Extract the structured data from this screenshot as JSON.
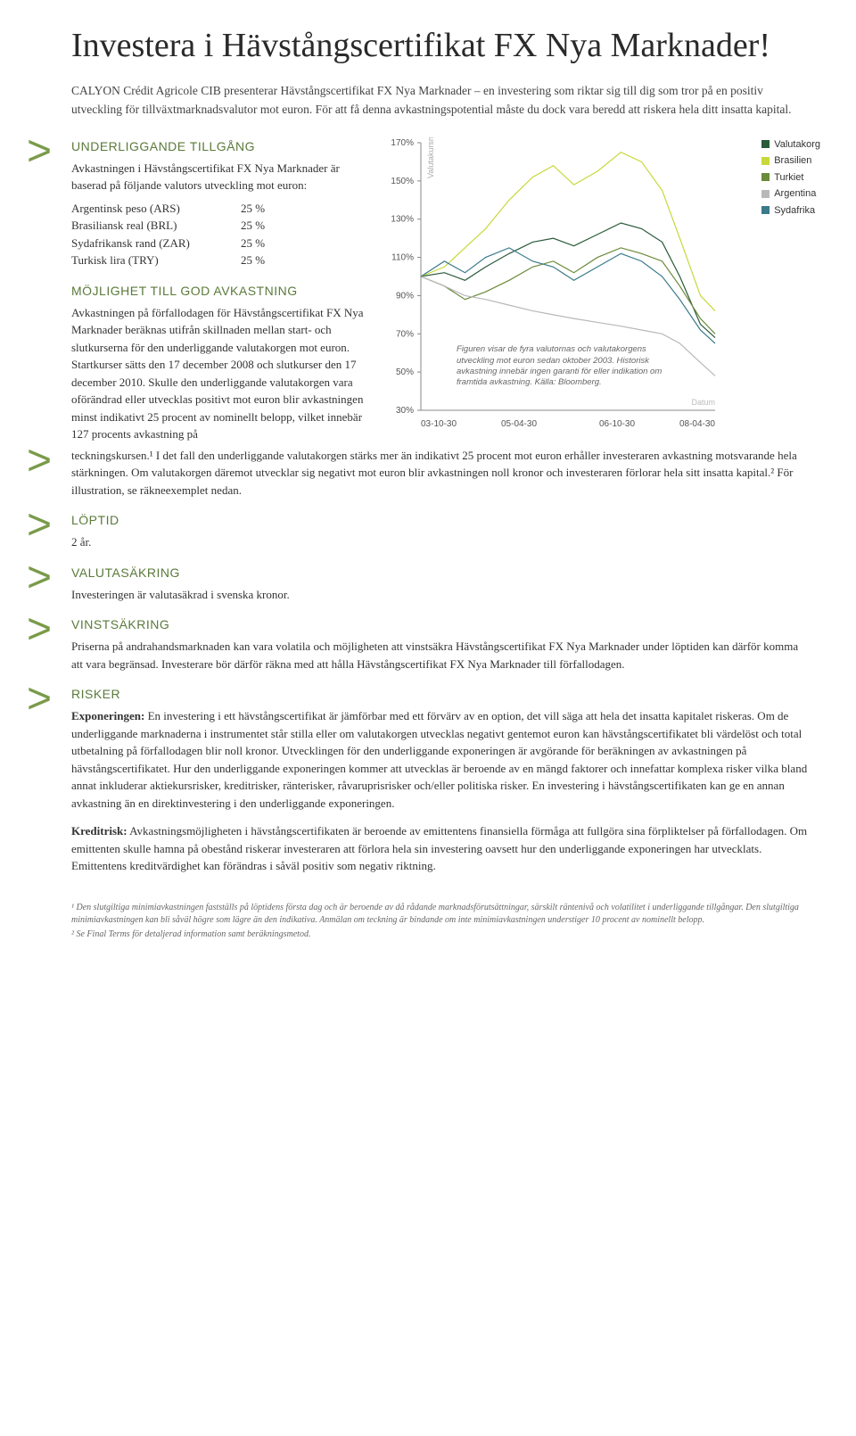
{
  "title": "Investera i Hävstångscertifikat FX Nya Marknader!",
  "intro": "CALYON Crédit Agricole CIB presenterar Hävstångscertifikat FX Nya Marknader – en investering som riktar sig till dig som tror på en positiv utveckling för tillväxtmarknadsvalutor mot euron. För att få denna avkastningspotential måste du dock vara beredd att riskera hela ditt insatta kapital.",
  "sections": {
    "underlying": {
      "title": "UNDERLIGGANDE TILLGÅNG",
      "text": "Avkastningen i Hävstångscertifikat FX Nya Marknader är baserad på följande valutors utveckling mot euron:",
      "currencies": [
        {
          "name": "Argentinsk peso (ARS)",
          "pct": "25 %"
        },
        {
          "name": "Brasiliansk real (BRL)",
          "pct": "25 %"
        },
        {
          "name": "Sydafrikansk rand (ZAR)",
          "pct": "25 %"
        },
        {
          "name": "Turkisk lira (TRY)",
          "pct": "25 %"
        }
      ]
    },
    "return": {
      "title": "MÖJLIGHET TILL GOD AVKASTNING",
      "text1": "Avkastningen på förfallodagen för Hävstångscertifikat FX Nya Marknader beräknas utifrån skillnaden mellan start- och slutkurserna för den underliggande valutakorgen mot euron. Startkurser sätts den 17 december 2008 och slutkurser den 17 december 2010. Skulle den underliggande valutakorgen vara oförändrad eller utvecklas positivt mot euron blir avkastningen minst indikativt 25 procent av nominellt belopp, vilket innebär 127 procents avkastning på",
      "text2": "teckningskursen.¹ I det fall den underliggande valutakorgen stärks mer än indikativt 25 procent mot euron erhåller investeraren avkastning motsvarande hela stärkningen. Om valutakorgen däremot utvecklar sig negativt mot euron blir avkastningen noll kronor och investeraren förlorar hela sitt insatta kapital.² För illustration, se räkneexemplet nedan."
    },
    "duration": {
      "title": "LÖPTID",
      "text": "2 år."
    },
    "fxhedge": {
      "title": "VALUTASÄKRING",
      "text": "Investeringen är valutasäkrad i svenska kronor."
    },
    "profitlock": {
      "title": "VINSTSÄKRING",
      "text": "Priserna på andrahandsmarknaden kan vara volatila och möjligheten att vinstsäkra Hävstångscertifikat FX Nya Marknader under löptiden kan därför komma att vara begränsad. Investerare bör därför räkna med att hålla Hävstångscertifikat FX Nya Marknader till förfallodagen."
    },
    "risks": {
      "title": "RISKER",
      "exposure_label": "Exponeringen:",
      "exposure_text": " En investering i ett hävstångscertifikat är jämförbar med ett förvärv av en option, det vill säga att hela det insatta kapitalet riskeras. Om de underliggande marknaderna i instrumentet står stilla eller om valutakorgen utvecklas negativt gentemot euron kan hävstångscertifikatet bli värdelöst och total utbetalning på förfallodagen blir noll kronor. Utvecklingen för den underliggande exponeringen är avgörande för beräkningen av avkastningen på hävstångscertifikatet. Hur den underliggande exponeringen kommer att utvecklas är beroende av en mängd faktorer och innefattar komplexa risker vilka bland annat inkluderar aktiekursrisker, kreditrisker, ränterisker, råvaruprisrisker och/eller politiska risker. En investering i hävstångscertifikaten kan ge en annan avkastning än en direktinvestering i den underliggande exponeringen.",
      "credit_label": "Kreditrisk:",
      "credit_text": " Avkastningsmöjligheten i hävstångscertifikaten är beroende av emittentens finansiella förmåga att fullgöra sina förpliktelser på förfallodagen. Om emittenten skulle hamna på obestånd riskerar investeraren att förlora hela sin investering oavsett hur den underliggande exponeringen har utvecklats. Emittentens kreditvärdighet kan förändras i såväl positiv som negativ riktning."
    }
  },
  "chart": {
    "type": "line",
    "ylabel": "Valutakursnivå",
    "ylim": [
      30,
      170
    ],
    "ytick_step": 20,
    "yticks": [
      "170%",
      "150%",
      "130%",
      "110%",
      "90%",
      "70%",
      "50%",
      "30%"
    ],
    "xticks": [
      "03-10-30",
      "05-04-30",
      "06-10-30",
      "08-04-30"
    ],
    "xlabel": "Datum",
    "background_color": "#ffffff",
    "axis_color": "#888888",
    "tick_fontsize": 10,
    "line_width": 1.2,
    "series": [
      {
        "name": "Valutakorg",
        "color": "#2a5a3a",
        "data": [
          [
            0,
            100
          ],
          [
            8,
            102
          ],
          [
            15,
            98
          ],
          [
            22,
            105
          ],
          [
            30,
            112
          ],
          [
            38,
            118
          ],
          [
            45,
            120
          ],
          [
            52,
            116
          ],
          [
            60,
            122
          ],
          [
            68,
            128
          ],
          [
            75,
            125
          ],
          [
            82,
            118
          ],
          [
            88,
            100
          ],
          [
            95,
            75
          ],
          [
            100,
            68
          ]
        ]
      },
      {
        "name": "Brasilien",
        "color": "#c8d83a",
        "data": [
          [
            0,
            100
          ],
          [
            8,
            105
          ],
          [
            15,
            115
          ],
          [
            22,
            125
          ],
          [
            30,
            140
          ],
          [
            38,
            152
          ],
          [
            45,
            158
          ],
          [
            52,
            148
          ],
          [
            60,
            155
          ],
          [
            68,
            165
          ],
          [
            75,
            160
          ],
          [
            82,
            145
          ],
          [
            88,
            120
          ],
          [
            95,
            90
          ],
          [
            100,
            82
          ]
        ]
      },
      {
        "name": "Turkiet",
        "color": "#6b8a3a",
        "data": [
          [
            0,
            100
          ],
          [
            8,
            95
          ],
          [
            15,
            88
          ],
          [
            22,
            92
          ],
          [
            30,
            98
          ],
          [
            38,
            105
          ],
          [
            45,
            108
          ],
          [
            52,
            102
          ],
          [
            60,
            110
          ],
          [
            68,
            115
          ],
          [
            75,
            112
          ],
          [
            82,
            108
          ],
          [
            88,
            95
          ],
          [
            95,
            78
          ],
          [
            100,
            70
          ]
        ]
      },
      {
        "name": "Argentina",
        "color": "#b8b8b8",
        "data": [
          [
            0,
            100
          ],
          [
            8,
            95
          ],
          [
            15,
            90
          ],
          [
            22,
            88
          ],
          [
            30,
            85
          ],
          [
            38,
            82
          ],
          [
            45,
            80
          ],
          [
            52,
            78
          ],
          [
            60,
            76
          ],
          [
            68,
            74
          ],
          [
            75,
            72
          ],
          [
            82,
            70
          ],
          [
            88,
            65
          ],
          [
            95,
            55
          ],
          [
            100,
            48
          ]
        ]
      },
      {
        "name": "Sydafrika",
        "color": "#3a7a8a",
        "data": [
          [
            0,
            100
          ],
          [
            8,
            108
          ],
          [
            15,
            102
          ],
          [
            22,
            110
          ],
          [
            30,
            115
          ],
          [
            38,
            108
          ],
          [
            45,
            105
          ],
          [
            52,
            98
          ],
          [
            60,
            105
          ],
          [
            68,
            112
          ],
          [
            75,
            108
          ],
          [
            82,
            100
          ],
          [
            88,
            88
          ],
          [
            95,
            72
          ],
          [
            100,
            65
          ]
        ]
      }
    ],
    "caption": "Figuren visar de fyra valutornas och valutakorgens utveckling mot euron sedan oktober 2003. Historisk avkastning innebär ingen garanti för eller indikation om framtida avkastning. Källa: Bloomberg."
  },
  "legend": [
    {
      "color": "#2a5a3a",
      "label": "Valutakorg"
    },
    {
      "color": "#c8d83a",
      "label": "Brasilien"
    },
    {
      "color": "#6b8a3a",
      "label": "Turkiet"
    },
    {
      "color": "#b8b8b8",
      "label": "Argentina"
    },
    {
      "color": "#3a7a8a",
      "label": "Sydafrika"
    }
  ],
  "footnotes": {
    "f1": "¹ Den slutgiltiga minimiavkastningen fastställs på löptidens första dag och är beroende av då rådande marknadsförutsättningar, särskilt räntenivå och volatilitet i underliggande tillgångar. Den slutgiltiga minimiavkastningen kan bli såväl högre som lägre än den indikativa. Anmälan om teckning är bindande om inte minimiavkastningen understiger 10 procent av nominellt belopp.",
    "f2": "² Se Final Terms för detaljerad information samt beräkningsmetod."
  }
}
